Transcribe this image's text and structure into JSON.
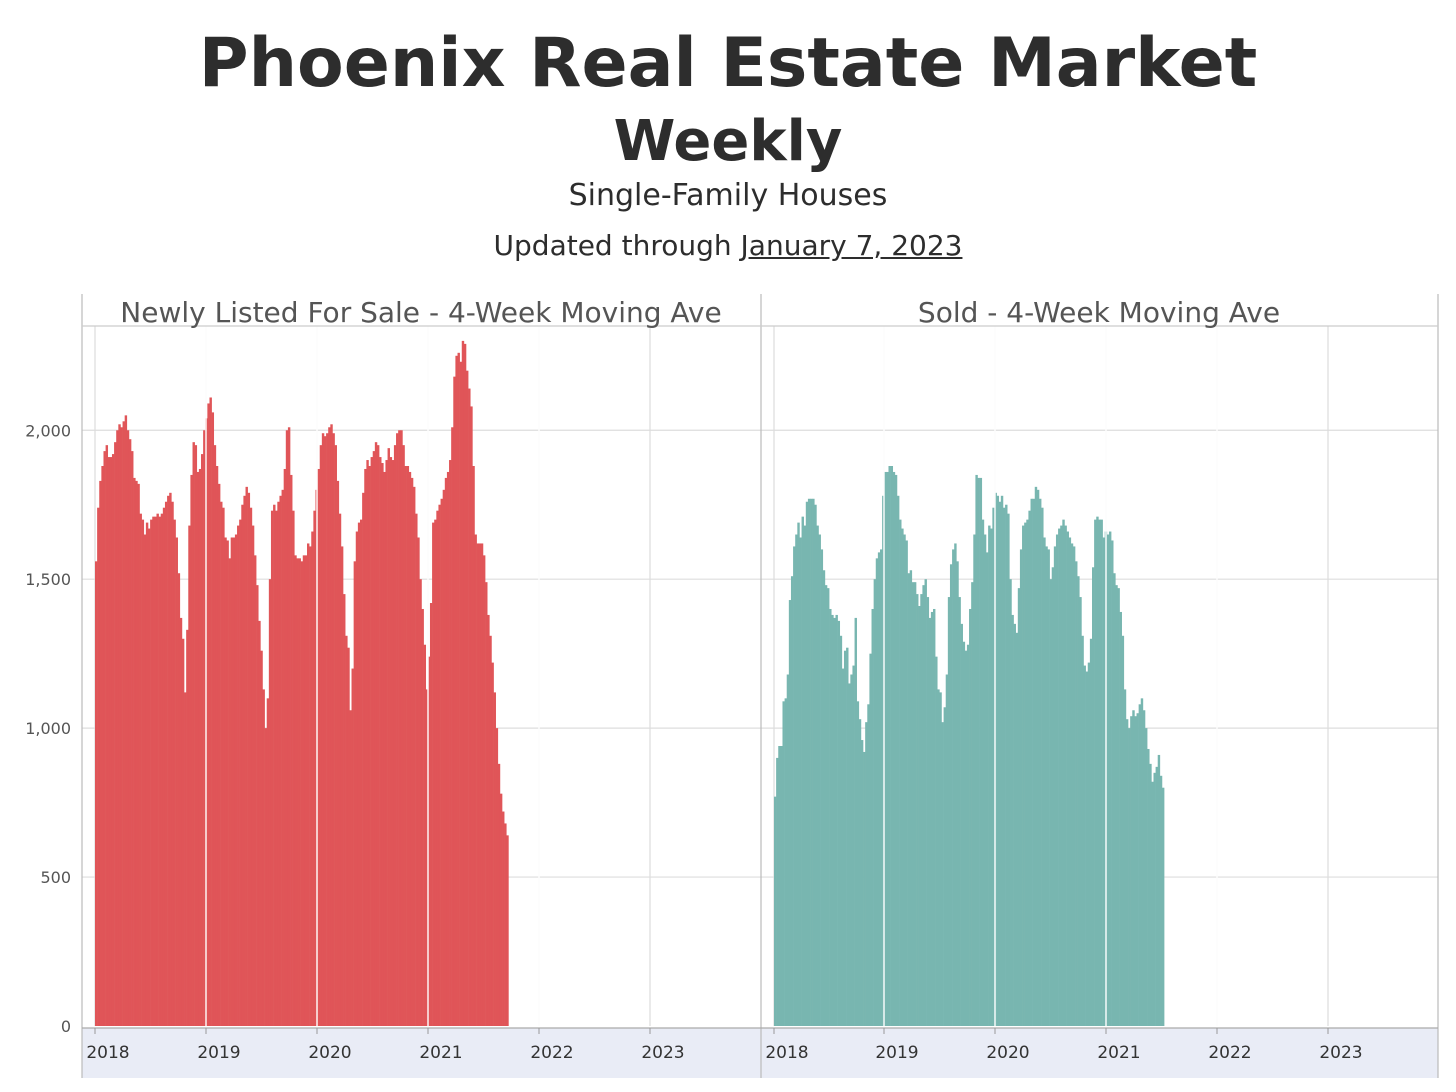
{
  "header": {
    "title": "Phoenix Real Estate Market",
    "subtitle": "Weekly",
    "segment": "Single-Family Houses",
    "updated_prefix": "Updated through ",
    "updated_date": "January 7, 2023"
  },
  "colors": {
    "listed": "#e05558",
    "sold": "#78b6b0",
    "grid": "#dddddd",
    "axis_band": "#e9ecf6"
  },
  "chart_data": [
    {
      "type": "bar",
      "title": "Newly Listed For Sale - 4-Week Moving Ave",
      "ylim": [
        0,
        2350
      ],
      "yticks": [
        0,
        500,
        1000,
        1500,
        2000
      ],
      "ytick_labels": [
        "0",
        "500",
        "1,000",
        "1,500",
        "2,000"
      ],
      "xticks": [
        "2018",
        "2019",
        "2020",
        "2021",
        "2022",
        "2023"
      ],
      "x_start": "2018-01-06",
      "x_interval": "weekly",
      "grid": true,
      "values": [
        1560,
        1740,
        1830,
        1880,
        1930,
        1950,
        1910,
        1910,
        1920,
        1960,
        2000,
        2020,
        2010,
        2030,
        2050,
        2000,
        1970,
        1930,
        1840,
        1830,
        1820,
        1720,
        1700,
        1650,
        1690,
        1670,
        1700,
        1710,
        1710,
        1720,
        1710,
        1720,
        1740,
        1760,
        1780,
        1790,
        1760,
        1700,
        1640,
        1520,
        1370,
        1300,
        1120,
        1330,
        1680,
        1850,
        1960,
        1950,
        1860,
        1870,
        1920,
        2000,
        2040,
        2090,
        2110,
        2060,
        1950,
        1880,
        1820,
        1760,
        1740,
        1640,
        1630,
        1570,
        1640,
        1640,
        1650,
        1680,
        1700,
        1750,
        1780,
        1810,
        1790,
        1740,
        1680,
        1580,
        1480,
        1360,
        1260,
        1130,
        1000,
        1100,
        1500,
        1730,
        1750,
        1730,
        1760,
        1780,
        1800,
        1870,
        2000,
        2010,
        1850,
        1730,
        1580,
        1570,
        1570,
        1560,
        1580,
        1580,
        1620,
        1610,
        1660,
        1730,
        1800,
        1870,
        1950,
        1990,
        1980,
        1990,
        2010,
        2020,
        1990,
        1950,
        1830,
        1720,
        1610,
        1450,
        1310,
        1270,
        1060,
        1200,
        1560,
        1660,
        1690,
        1700,
        1790,
        1870,
        1900,
        1880,
        1910,
        1930,
        1960,
        1950,
        1910,
        1890,
        1860,
        1900,
        1940,
        1910,
        1900,
        1950,
        1990,
        2000,
        2000,
        1950,
        1880,
        1880,
        1860,
        1840,
        1810,
        1720,
        1640,
        1500,
        1400,
        1280,
        1130,
        1240,
        1420,
        1690,
        1700,
        1730,
        1750,
        1770,
        1800,
        1840,
        1860,
        1900,
        2010,
        2180,
        2250,
        2260,
        2230,
        2300,
        2290,
        2200,
        2140,
        2080,
        1880,
        1650,
        1620,
        1620,
        1620,
        1580,
        1490,
        1380,
        1310,
        1220,
        1120,
        1000,
        880,
        780,
        720,
        680,
        640
      ]
    },
    {
      "type": "bar",
      "title": "Sold - 4-Week Moving Ave",
      "ylim": [
        0,
        2350
      ],
      "yticks": [
        0,
        500,
        1000,
        1500,
        2000
      ],
      "xticks": [
        "2018",
        "2019",
        "2020",
        "2021",
        "2022",
        "2023"
      ],
      "x_start": "2018-01-06",
      "x_interval": "weekly",
      "grid": true,
      "values": [
        770,
        900,
        940,
        940,
        1090,
        1100,
        1180,
        1430,
        1510,
        1610,
        1650,
        1690,
        1640,
        1710,
        1680,
        1760,
        1770,
        1770,
        1770,
        1750,
        1680,
        1650,
        1600,
        1530,
        1480,
        1470,
        1400,
        1380,
        1370,
        1380,
        1360,
        1310,
        1200,
        1260,
        1270,
        1150,
        1180,
        1210,
        1370,
        1090,
        1030,
        960,
        920,
        1020,
        1080,
        1250,
        1400,
        1500,
        1570,
        1590,
        1600,
        1780,
        1860,
        1860,
        1880,
        1880,
        1860,
        1850,
        1780,
        1700,
        1670,
        1650,
        1630,
        1520,
        1530,
        1490,
        1490,
        1450,
        1410,
        1450,
        1480,
        1500,
        1440,
        1370,
        1390,
        1400,
        1240,
        1130,
        1120,
        1020,
        1070,
        1180,
        1440,
        1550,
        1600,
        1620,
        1560,
        1440,
        1350,
        1290,
        1260,
        1280,
        1400,
        1490,
        1650,
        1850,
        1840,
        1840,
        1700,
        1650,
        1590,
        1680,
        1670,
        1740,
        1790,
        1780,
        1760,
        1780,
        1740,
        1750,
        1720,
        1500,
        1380,
        1350,
        1320,
        1470,
        1600,
        1680,
        1690,
        1700,
        1730,
        1770,
        1770,
        1810,
        1800,
        1770,
        1740,
        1640,
        1610,
        1600,
        1500,
        1540,
        1610,
        1650,
        1670,
        1680,
        1700,
        1680,
        1660,
        1640,
        1620,
        1610,
        1560,
        1510,
        1440,
        1310,
        1210,
        1190,
        1220,
        1300,
        1540,
        1700,
        1710,
        1700,
        1700,
        1640,
        1660,
        1650,
        1660,
        1630,
        1520,
        1480,
        1470,
        1390,
        1310,
        1130,
        1030,
        1000,
        1040,
        1060,
        1040,
        1050,
        1080,
        1100,
        1060,
        1000,
        930,
        880,
        820,
        850,
        870,
        910,
        840,
        800
      ]
    }
  ]
}
